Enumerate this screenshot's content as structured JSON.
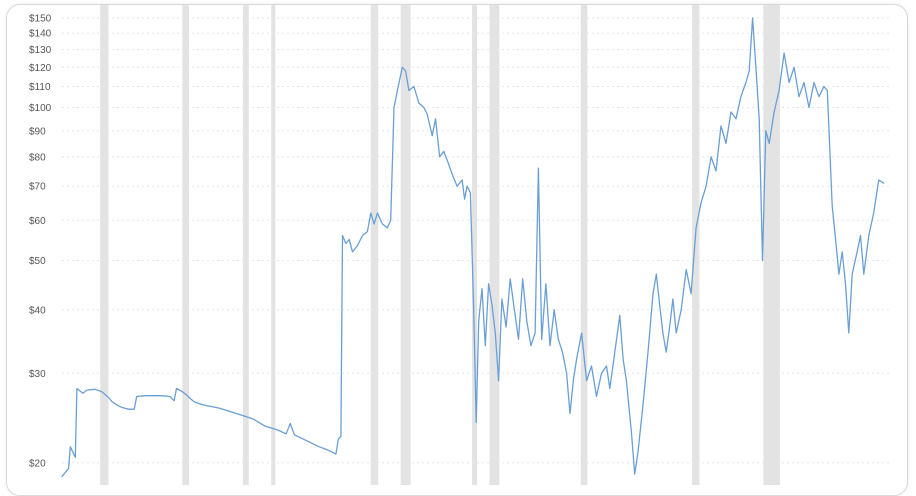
{
  "chart_data": {
    "type": "line",
    "title": "",
    "xlabel": "",
    "ylabel": "",
    "y_scale": "log",
    "ylim": [
      18.5,
      150
    ],
    "grid": true,
    "y_ticks": [
      {
        "value": 150,
        "label": "$150"
      },
      {
        "value": 140,
        "label": "$140"
      },
      {
        "value": 130,
        "label": "$130"
      },
      {
        "value": 120,
        "label": "$120"
      },
      {
        "value": 110,
        "label": "$110"
      },
      {
        "value": 100,
        "label": "$100"
      },
      {
        "value": 90,
        "label": "$90"
      },
      {
        "value": 80,
        "label": "$80"
      },
      {
        "value": 70,
        "label": "$70"
      },
      {
        "value": 60,
        "label": "$60"
      },
      {
        "value": 50,
        "label": "$50"
      },
      {
        "value": 40,
        "label": "$40"
      },
      {
        "value": 30,
        "label": "$30"
      },
      {
        "value": 20,
        "label": "$20"
      }
    ],
    "x_range": [
      0,
      1000
    ],
    "recession_bands": [
      [
        46,
        56
      ],
      [
        145,
        153
      ],
      [
        218,
        225
      ],
      [
        252,
        257
      ],
      [
        372,
        381
      ],
      [
        408,
        420
      ],
      [
        494,
        500
      ],
      [
        515,
        527
      ],
      [
        625,
        633
      ],
      [
        759,
        768
      ],
      [
        845,
        865
      ]
    ],
    "series": [
      {
        "color": "#6a9fd6",
        "points": [
          [
            0,
            18.8
          ],
          [
            8,
            19.5
          ],
          [
            10,
            21.5
          ],
          [
            16,
            20.5
          ],
          [
            18,
            28.0
          ],
          [
            25,
            27.4
          ],
          [
            30,
            27.8
          ],
          [
            40,
            27.9
          ],
          [
            48,
            27.6
          ],
          [
            56,
            26.9
          ],
          [
            60,
            26.4
          ],
          [
            66,
            26.0
          ],
          [
            72,
            25.7
          ],
          [
            80,
            25.5
          ],
          [
            87,
            25.5
          ],
          [
            90,
            27.0
          ],
          [
            100,
            27.1
          ],
          [
            120,
            27.1
          ],
          [
            130,
            27.0
          ],
          [
            135,
            26.5
          ],
          [
            138,
            28.0
          ],
          [
            145,
            27.6
          ],
          [
            150,
            27.2
          ],
          [
            155,
            26.7
          ],
          [
            160,
            26.3
          ],
          [
            170,
            26.0
          ],
          [
            190,
            25.6
          ],
          [
            210,
            25.0
          ],
          [
            230,
            24.4
          ],
          [
            245,
            23.6
          ],
          [
            260,
            23.2
          ],
          [
            270,
            22.8
          ],
          [
            275,
            23.9
          ],
          [
            280,
            22.7
          ],
          [
            290,
            22.3
          ],
          [
            300,
            21.9
          ],
          [
            310,
            21.5
          ],
          [
            320,
            21.2
          ],
          [
            330,
            20.8
          ],
          [
            333,
            22.3
          ],
          [
            336,
            22.5
          ],
          [
            338,
            56.0
          ],
          [
            342,
            54.0
          ],
          [
            346,
            55.0
          ],
          [
            350,
            52.0
          ],
          [
            356,
            53.5
          ],
          [
            362,
            56.0
          ],
          [
            368,
            57.0
          ],
          [
            372,
            62.0
          ],
          [
            376,
            59.0
          ],
          [
            380,
            62.0
          ],
          [
            386,
            59.0
          ],
          [
            392,
            58.0
          ],
          [
            396,
            60.0
          ],
          [
            400,
            100.0
          ],
          [
            405,
            110.0
          ],
          [
            410,
            120.0
          ],
          [
            414,
            118.0
          ],
          [
            418,
            108.0
          ],
          [
            424,
            110.0
          ],
          [
            430,
            102.0
          ],
          [
            436,
            100.0
          ],
          [
            440,
            97.0
          ],
          [
            446,
            88.0
          ],
          [
            450,
            95.0
          ],
          [
            455,
            80.0
          ],
          [
            460,
            82.0
          ],
          [
            465,
            78.0
          ],
          [
            470,
            74.0
          ],
          [
            476,
            70.0
          ],
          [
            482,
            72.0
          ],
          [
            485,
            66.0
          ],
          [
            488,
            70.0
          ],
          [
            492,
            68.0
          ],
          [
            496,
            40.0
          ],
          [
            499,
            24.0
          ],
          [
            502,
            38.0
          ],
          [
            506,
            44.0
          ],
          [
            510,
            34.0
          ],
          [
            514,
            45.0
          ],
          [
            518,
            41.0
          ],
          [
            522,
            36.0
          ],
          [
            526,
            29.0
          ],
          [
            530,
            42.0
          ],
          [
            535,
            37.0
          ],
          [
            540,
            46.0
          ],
          [
            545,
            40.0
          ],
          [
            550,
            35.0
          ],
          [
            555,
            46.0
          ],
          [
            560,
            38.0
          ],
          [
            565,
            34.0
          ],
          [
            570,
            36.0
          ],
          [
            574,
            76.0
          ],
          [
            578,
            35.0
          ],
          [
            583,
            45.0
          ],
          [
            588,
            34.0
          ],
          [
            593,
            40.0
          ],
          [
            598,
            35.0
          ],
          [
            603,
            33.0
          ],
          [
            608,
            30.0
          ],
          [
            612,
            25.0
          ],
          [
            616,
            29.0
          ],
          [
            620,
            32.0
          ],
          [
            626,
            36.0
          ],
          [
            632,
            29.0
          ],
          [
            638,
            31.0
          ],
          [
            644,
            27.0
          ],
          [
            650,
            30.0
          ],
          [
            656,
            31.0
          ],
          [
            660,
            28.0
          ],
          [
            666,
            33.0
          ],
          [
            672,
            39.0
          ],
          [
            676,
            32.0
          ],
          [
            680,
            29.0
          ],
          [
            686,
            23.0
          ],
          [
            690,
            19.0
          ],
          [
            694,
            21.0
          ],
          [
            700,
            26.0
          ],
          [
            706,
            33.0
          ],
          [
            712,
            43.0
          ],
          [
            716,
            47.0
          ],
          [
            720,
            41.0
          ],
          [
            724,
            36.0
          ],
          [
            728,
            33.0
          ],
          [
            732,
            37.0
          ],
          [
            736,
            42.0
          ],
          [
            740,
            36.0
          ],
          [
            746,
            40.0
          ],
          [
            752,
            48.0
          ],
          [
            758,
            43.0
          ],
          [
            764,
            58.0
          ],
          [
            770,
            65.0
          ],
          [
            776,
            70.0
          ],
          [
            782,
            80.0
          ],
          [
            788,
            75.0
          ],
          [
            794,
            92.0
          ],
          [
            800,
            85.0
          ],
          [
            806,
            98.0
          ],
          [
            812,
            95.0
          ],
          [
            818,
            105.0
          ],
          [
            824,
            112.0
          ],
          [
            828,
            118.0
          ],
          [
            832,
            150.0
          ],
          [
            836,
            120.0
          ],
          [
            840,
            95.0
          ],
          [
            844,
            50.0
          ],
          [
            848,
            90.0
          ],
          [
            852,
            85.0
          ],
          [
            858,
            98.0
          ],
          [
            864,
            108.0
          ],
          [
            870,
            128.0
          ],
          [
            876,
            112.0
          ],
          [
            882,
            120.0
          ],
          [
            888,
            105.0
          ],
          [
            894,
            112.0
          ],
          [
            900,
            100.0
          ],
          [
            906,
            112.0
          ],
          [
            912,
            105.0
          ],
          [
            918,
            110.0
          ],
          [
            922,
            108.0
          ],
          [
            928,
            64.0
          ],
          [
            932,
            55.0
          ],
          [
            936,
            47.0
          ],
          [
            940,
            52.0
          ],
          [
            944,
            45.0
          ],
          [
            948,
            36.0
          ],
          [
            952,
            47.0
          ],
          [
            958,
            52.0
          ],
          [
            962,
            56.0
          ],
          [
            966,
            47.0
          ],
          [
            972,
            56.0
          ],
          [
            978,
            62.0
          ],
          [
            984,
            72.0
          ],
          [
            990,
            71.0
          ]
        ]
      }
    ]
  }
}
